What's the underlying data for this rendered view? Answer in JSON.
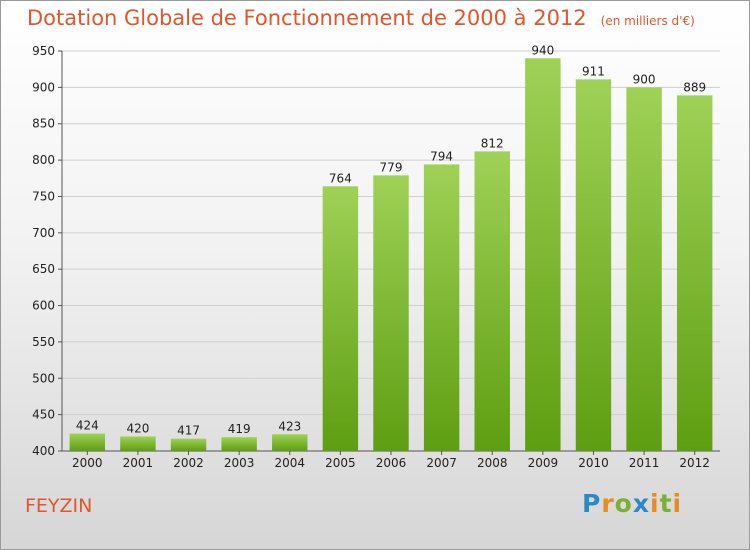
{
  "title": "Dotation Globale de Fonctionnement de 2000 à 2012",
  "subtitle": "(en milliers d'€)",
  "commune": "FEYZIN",
  "logo": "Proxiti",
  "colors": {
    "title": "#e0562d",
    "bar_top": "#9fd156",
    "bar_bottom": "#5e9e12",
    "grid": "#cfcfcf"
  },
  "chart_data": {
    "type": "bar",
    "categories": [
      "2000",
      "2001",
      "2002",
      "2003",
      "2004",
      "2005",
      "2006",
      "2007",
      "2008",
      "2009",
      "2010",
      "2011",
      "2012"
    ],
    "values": [
      424,
      420,
      417,
      419,
      423,
      764,
      779,
      794,
      812,
      940,
      911,
      900,
      889
    ],
    "ylim": [
      400,
      950
    ],
    "yticks": [
      400,
      450,
      500,
      550,
      600,
      650,
      700,
      750,
      800,
      850,
      900,
      950
    ],
    "grid": true,
    "xlabel": "",
    "ylabel": ""
  }
}
